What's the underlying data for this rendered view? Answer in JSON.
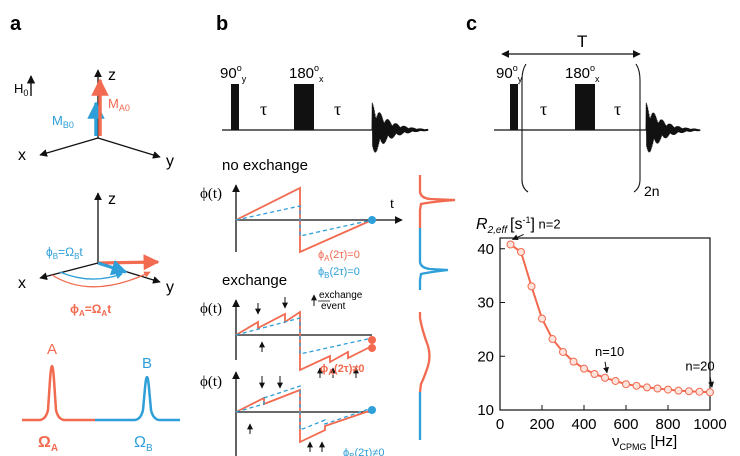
{
  "panels": {
    "a": {
      "label": "a",
      "frame1": {
        "h0": "H",
        "h0_sub": "0",
        "z": "z",
        "x": "x",
        "y": "y",
        "mb0": "M",
        "mb0_sub": "B0",
        "ma0": "M",
        "ma0_sub": "A0"
      },
      "frame2": {
        "z": "z",
        "x": "x",
        "y": "y",
        "phiB": "ϕ",
        "phiB_sub": "B",
        "phiB_rest": "=Ω",
        "phiB_sub2": "B",
        "phiB_t": "t",
        "phiA": "ϕ",
        "phiA_sub": "A",
        "phiA_rest": "=Ω",
        "phiA_sub2": "A",
        "phiA_t": "t"
      },
      "spectrum": {
        "peakA": "A",
        "peakB": "B",
        "omegaA": "Ω",
        "omegaA_sub": "A",
        "omegaB": "Ω",
        "omegaB_sub": "B"
      }
    },
    "b": {
      "label": "b",
      "p90": "90",
      "p90_sup": "o",
      "p90_sub": "y",
      "p180": "180",
      "p180_sup": "o",
      "p180_sub": "x",
      "tau1": "τ",
      "tau2": "τ",
      "no_exchange": "no exchange",
      "exchange": "exchange",
      "phi_label": "ϕ(t)",
      "t_label": "t",
      "phiA_eq": "ϕ",
      "phiA_eq_sub": "A",
      "phiA_eq_rest": "(2τ)=0",
      "phiB_eq": "ϕ",
      "phiB_eq_sub": "B",
      "phiB_eq_rest": "(2τ)=0",
      "exchange_event": "exchange",
      "exchange_event2": "event",
      "phiA_neq": "ϕ",
      "phiA_neq_sub": "A",
      "phiA_neq_rest": "(2τ)≠0",
      "phiB_neq": "ϕ",
      "phiB_neq_sub": "B",
      "phiB_neq_rest": "(2τ)≠0"
    },
    "c": {
      "label": "c",
      "T": "T",
      "p90": "90",
      "p90_sup": "o",
      "p90_sub": "y",
      "p180": "180",
      "p180_sup": "o",
      "p180_sub": "x",
      "tau1": "τ",
      "tau2": "τ",
      "repeat": "2n"
    }
  },
  "colors": {
    "A": "#f26a4f",
    "B": "#2e9fd8",
    "black": "#111111"
  },
  "chart_data": {
    "type": "scatter",
    "title": "",
    "ylabel": "R",
    "ylabel_sub": "2,eff",
    "ylabel_unit": "[s",
    "ylabel_sup": "-1",
    "ylabel_close": "]",
    "xlabel": "ν",
    "xlabel_sub": "CPMG",
    "xlabel_unit": "[Hz]",
    "xlim": [
      0,
      1000
    ],
    "ylim": [
      10,
      42
    ],
    "xticks": [
      0,
      200,
      400,
      600,
      800,
      1000
    ],
    "yticks": [
      10,
      20,
      30,
      40
    ],
    "grid": false,
    "series": [
      {
        "x": [
          50,
          100,
          150,
          200,
          250,
          300,
          350,
          400,
          450,
          500,
          550,
          600,
          650,
          700,
          750,
          800,
          850,
          900,
          950,
          1000
        ],
        "y": [
          40.8,
          39.4,
          33.0,
          27.0,
          23.2,
          20.8,
          19.0,
          17.7,
          16.7,
          16.0,
          15.4,
          14.8,
          14.5,
          14.2,
          14.0,
          13.8,
          13.6,
          13.5,
          13.4,
          13.3
        ]
      }
    ],
    "annotations": [
      {
        "text": "n=2",
        "x": 50,
        "y": 40.8
      },
      {
        "text": "n=10",
        "x": 500,
        "y": 16.0
      },
      {
        "text": "n=20",
        "x": 1000,
        "y": 13.3
      }
    ]
  }
}
